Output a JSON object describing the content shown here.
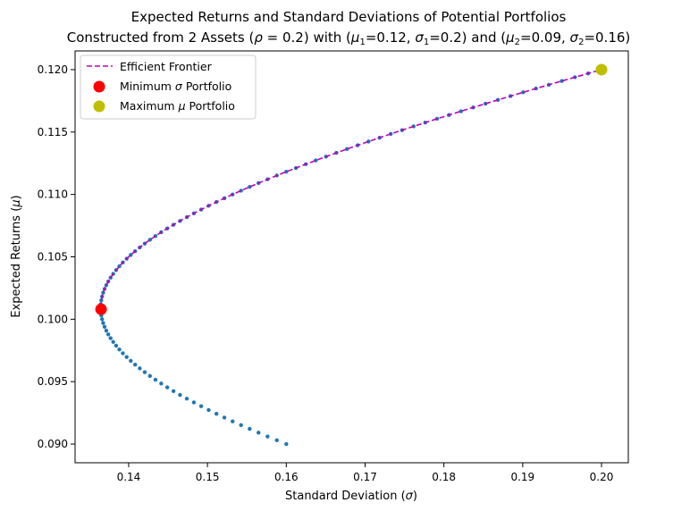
{
  "chart_data": {
    "type": "scatter",
    "title_line1": "Expected Returns and Standard Deviations of Potential Portfolios",
    "title_line2_parts": {
      "a": "Constructed from 2 Assets (",
      "rho": "ρ",
      "b": " = 0.2) with (",
      "mu1": "μ",
      "s1": "1",
      "c": "=0.12, ",
      "sig1": "σ",
      "s2": "1",
      "d": "=0.2) and (",
      "mu2": "μ",
      "s3": "2",
      "e": "=0.09, ",
      "sig2": "σ",
      "s4": "2",
      "f": "=0.16)"
    },
    "xlabel_parts": {
      "text": "Standard Deviation (",
      "sym": "σ",
      "end": ")"
    },
    "ylabel_parts": {
      "text": "Expected Returns (",
      "sym": "μ",
      "end": ")"
    },
    "xlim": [
      0.1332,
      0.2034
    ],
    "ylim": [
      0.0885,
      0.1215
    ],
    "xticks": [
      "0.14",
      "0.15",
      "0.16",
      "0.17",
      "0.18",
      "0.19",
      "0.20"
    ],
    "yticks": [
      "0.090",
      "0.095",
      "0.100",
      "0.105",
      "0.110",
      "0.115",
      "0.120"
    ],
    "assets": {
      "mu1": 0.12,
      "sigma1": 0.2,
      "mu2": 0.09,
      "sigma2": 0.16,
      "rho": 0.2
    },
    "portfolio_count": 100,
    "colors": {
      "portfolios": "#1f77b4",
      "frontier": "#bf00bf",
      "min_sigma": "#ff0000",
      "max_mu": "#bfbf00"
    },
    "legend": {
      "placement": "top-left",
      "entries": [
        {
          "name": "Efficient Frontier"
        },
        {
          "name_a": "Minimum ",
          "sym": "σ",
          "name_b": " Portfolio"
        },
        {
          "name_a": "Maximum ",
          "sym": "μ",
          "name_b": " Portfolio"
        }
      ]
    },
    "min_sigma_point": {
      "x": 0.1365,
      "y": 0.1008
    },
    "max_mu_point": {
      "x": 0.2,
      "y": 0.12
    }
  }
}
